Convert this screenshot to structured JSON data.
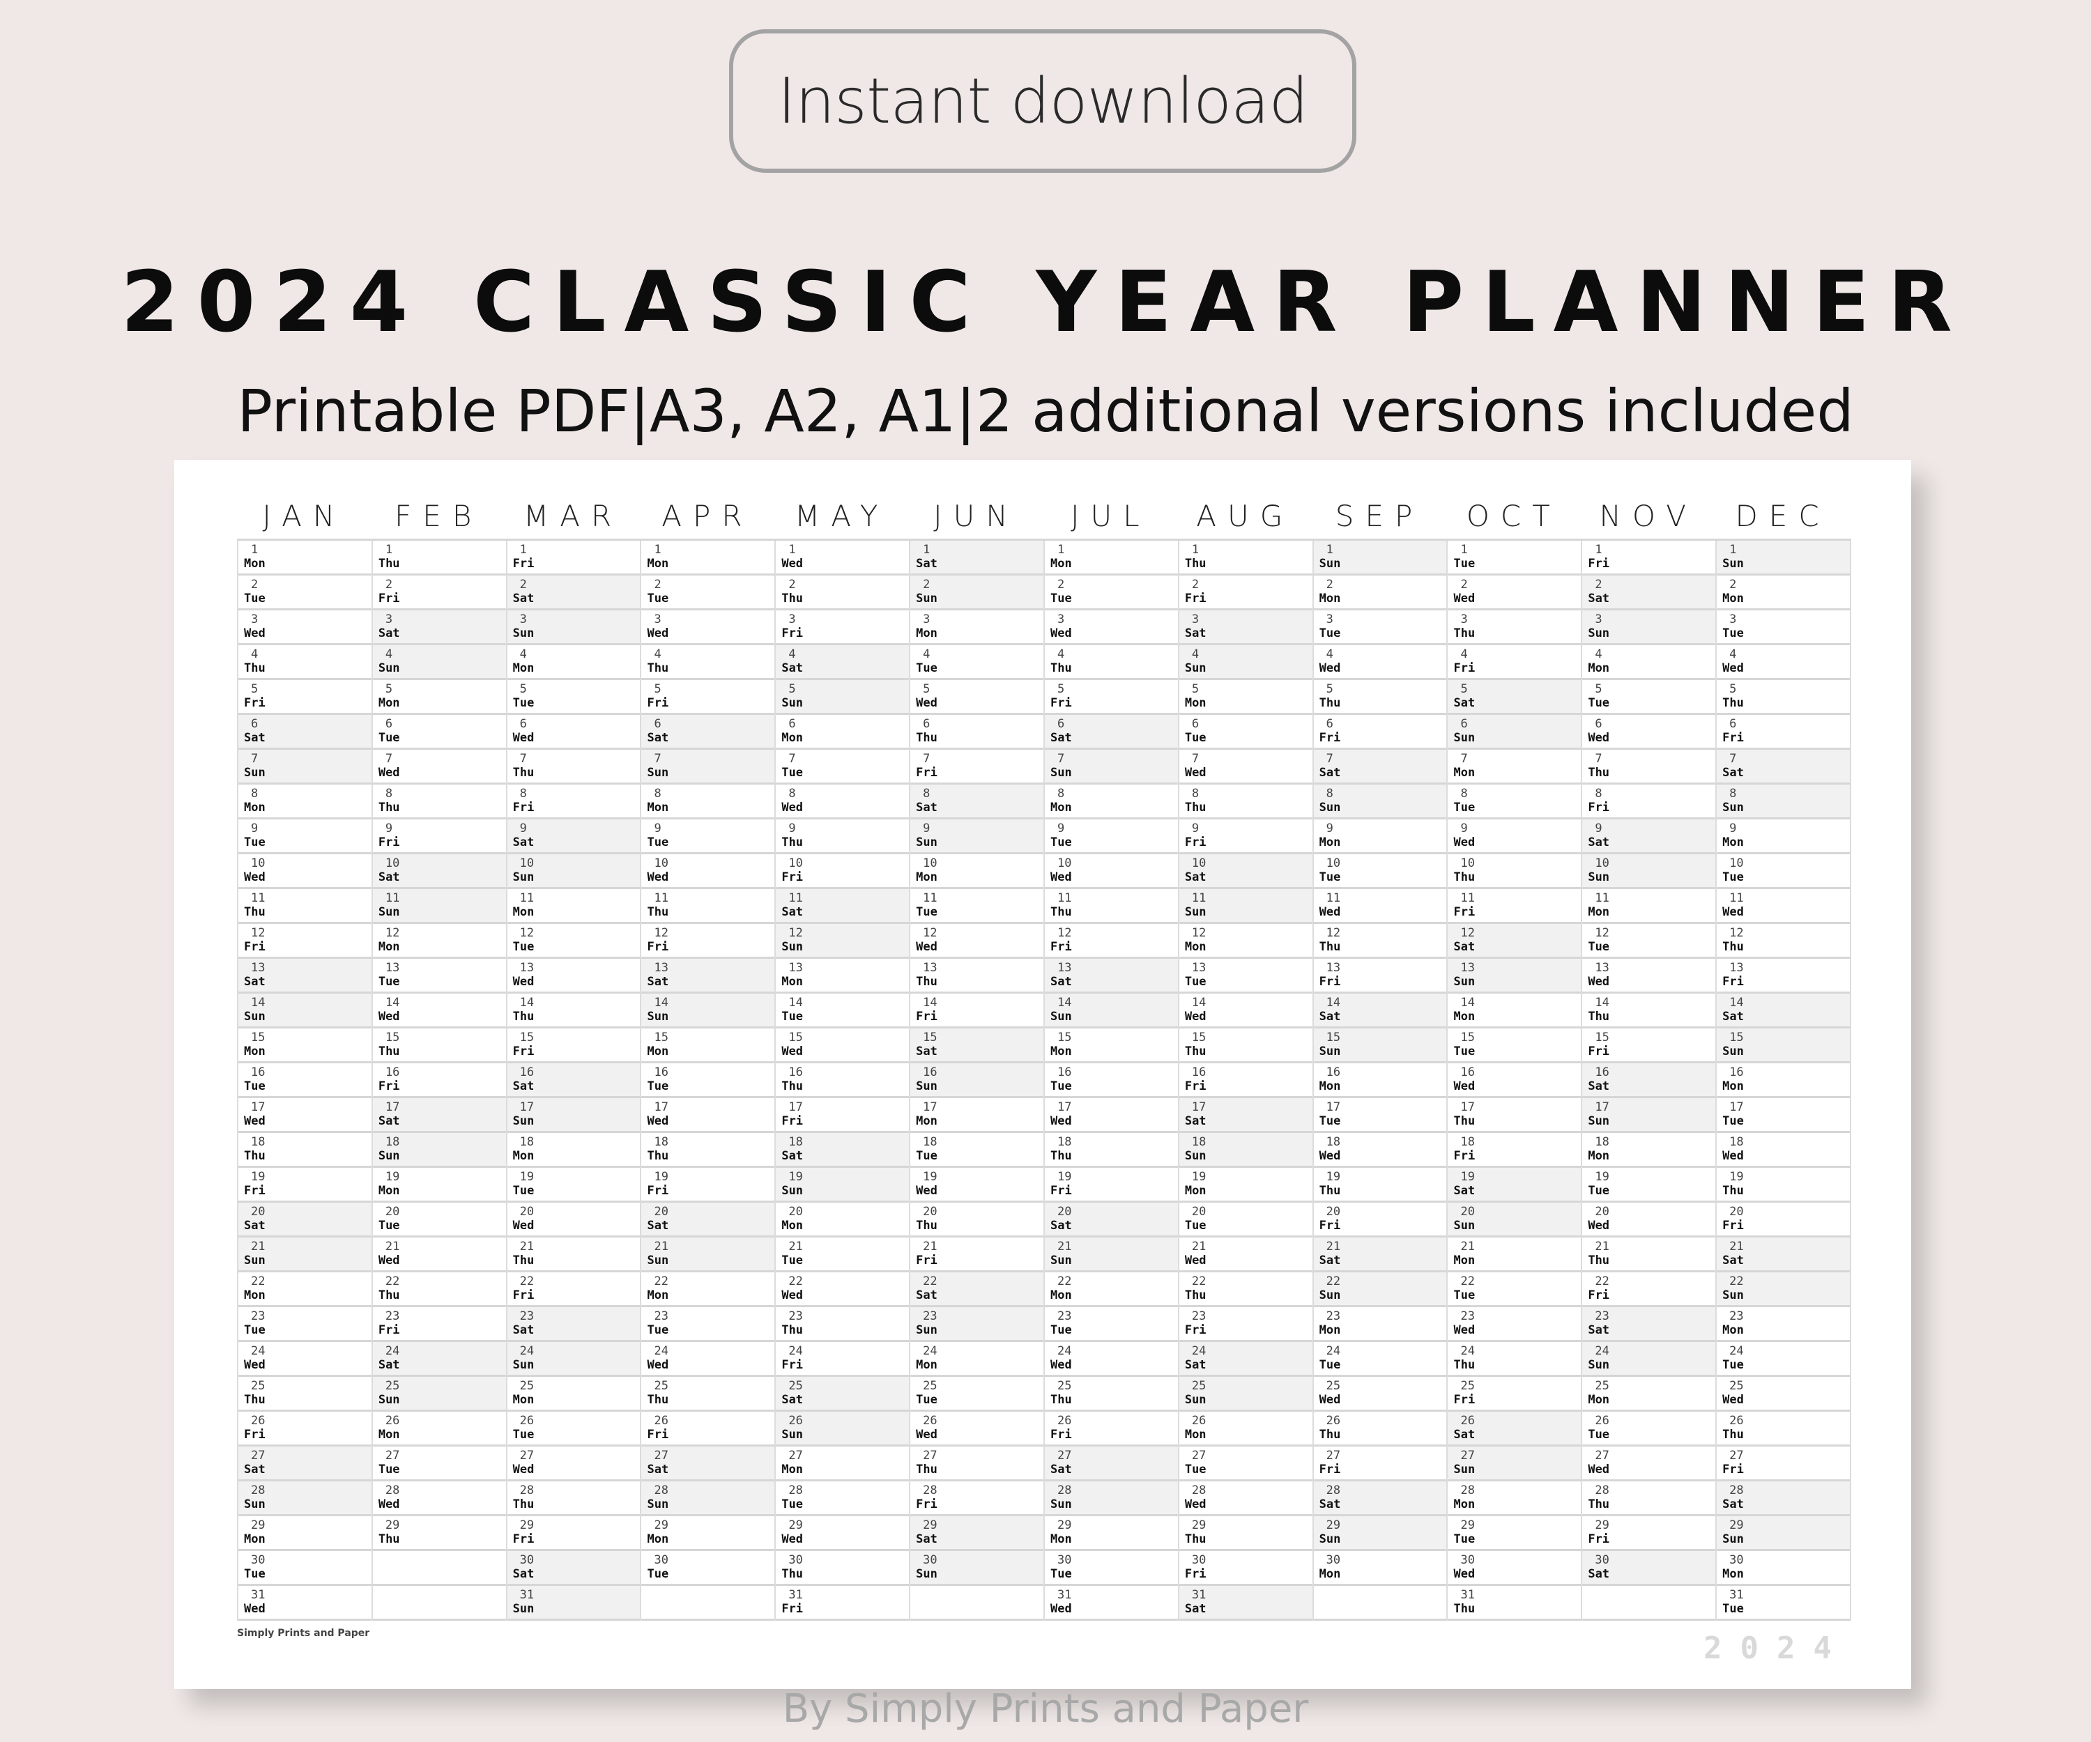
{
  "badge": "Instant download",
  "title": "2024 CLASSIC YEAR PLANNER",
  "subtitle": "Printable PDF|A3, A2, A1|2 additional versions included",
  "planner": {
    "year_mark": "2024",
    "brand": "Simply Prints and Paper",
    "weekdays": [
      "Mon",
      "Tue",
      "Wed",
      "Thu",
      "Fri",
      "Sat",
      "Sun"
    ],
    "weekend_days": [
      "Sat",
      "Sun"
    ],
    "weekend_shade": "#f1f1f1",
    "months": [
      {
        "label": "JAN",
        "first_day": "Mon",
        "days": 31
      },
      {
        "label": "FEB",
        "first_day": "Thu",
        "days": 29
      },
      {
        "label": "MAR",
        "first_day": "Fri",
        "days": 31
      },
      {
        "label": "APR",
        "first_day": "Mon",
        "days": 30
      },
      {
        "label": "MAY",
        "first_day": "Wed",
        "days": 31
      },
      {
        "label": "JUN",
        "first_day": "Sat",
        "days": 30
      },
      {
        "label": "JUL",
        "first_day": "Mon",
        "days": 31
      },
      {
        "label": "AUG",
        "first_day": "Thu",
        "days": 31
      },
      {
        "label": "SEP",
        "first_day": "Sun",
        "days": 30
      },
      {
        "label": "OCT",
        "first_day": "Tue",
        "days": 31
      },
      {
        "label": "NOV",
        "first_day": "Fri",
        "days": 30
      },
      {
        "label": "DEC",
        "first_day": "Sun",
        "days": 31
      }
    ]
  },
  "footer": "By Simply Prints and Paper",
  "colors": {
    "background": "#efe8e6",
    "badge_border": "#a3a3a3"
  }
}
